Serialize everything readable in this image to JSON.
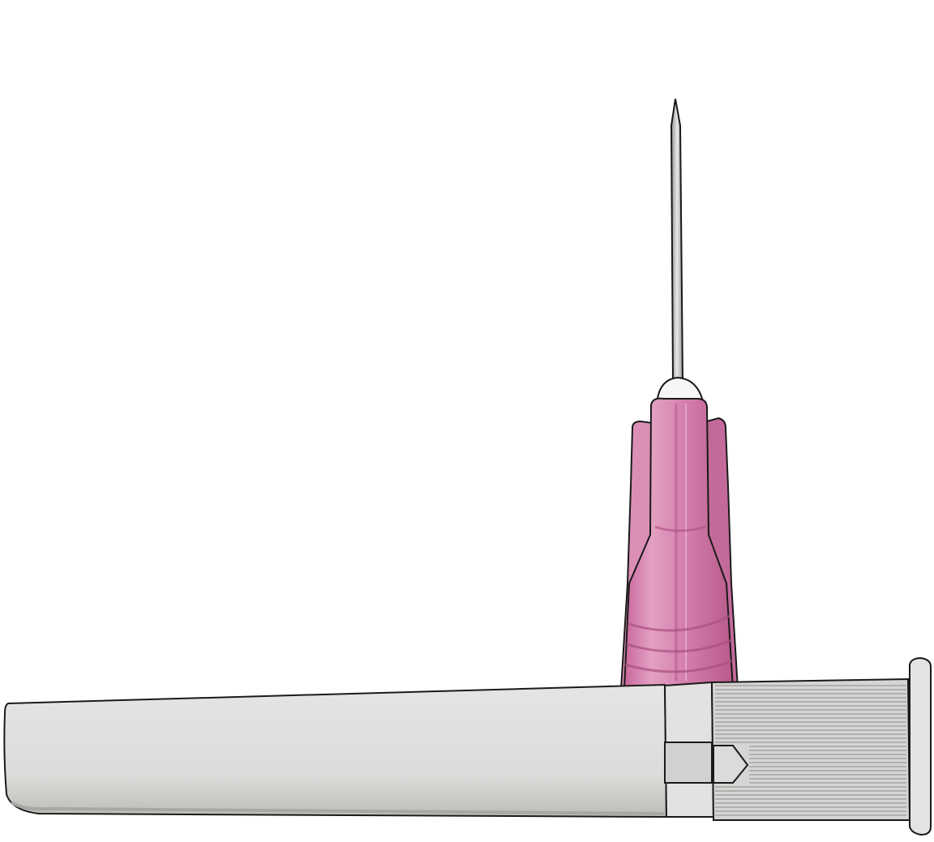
{
  "illustration": {
    "subject": "hypodermic-needle",
    "parts": [
      "needle-shaft",
      "needle-hub",
      "protective-cap"
    ],
    "colors": {
      "background": "#ffffff",
      "hub": "#d47aa8",
      "hub_dark": "#b95a8d",
      "hub_light": "#e9aacb",
      "cap": "#dedddc",
      "cap_dark": "#b9b7b5",
      "cap_light": "#ececea",
      "needle": "#c9c9c9",
      "outline": "#1a1a1a"
    }
  }
}
